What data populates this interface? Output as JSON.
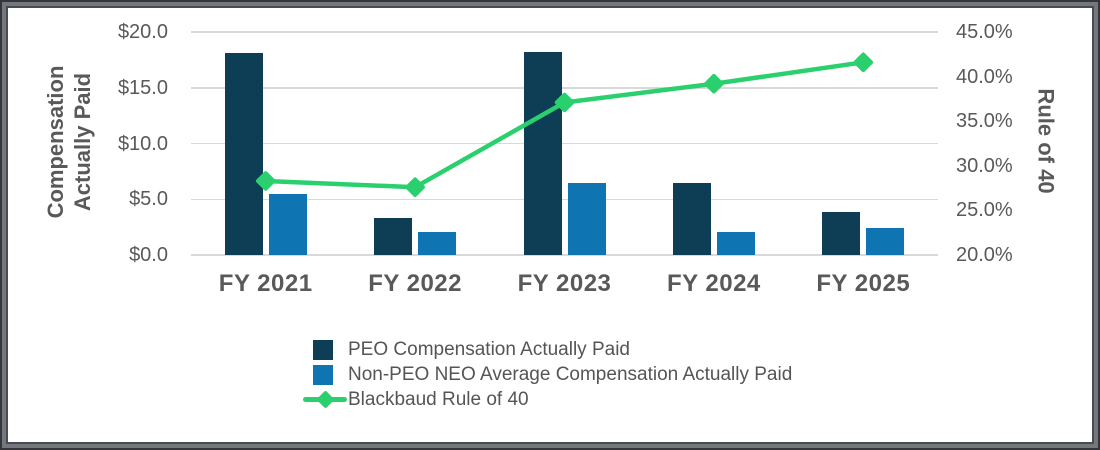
{
  "window": {
    "background": "#ffffff",
    "frame_color": "#54575d"
  },
  "chart_data": {
    "type": "combo",
    "grid": "horizontal",
    "legend_position": "bottom-left",
    "categories": [
      "FY 2021",
      "FY 2022",
      "FY 2023",
      "FY 2024",
      "FY 2025"
    ],
    "series": [
      {
        "name": "PEO Compensation Actually Paid",
        "type": "bar",
        "axis": "left",
        "color_key": "peo_bar",
        "values": [
          18.1,
          3.3,
          18.2,
          6.5,
          3.9
        ]
      },
      {
        "name": "Non-PEO NEO Average Compensation Actually Paid",
        "type": "bar",
        "axis": "left",
        "color_key": "non_peo_bar",
        "values": [
          5.5,
          2.1,
          6.5,
          2.1,
          2.4
        ]
      },
      {
        "name": "Blackbaud Rule of 40",
        "type": "line",
        "axis": "right",
        "color_key": "rule_line",
        "values": [
          28.3,
          27.6,
          37.1,
          39.2,
          41.6
        ]
      }
    ],
    "axes": {
      "left": {
        "title": "Compensation Actually Paid",
        "title_lines": [
          "Compensation",
          "Actually Paid"
        ],
        "min": 0,
        "max": 20,
        "tick_values": [
          20,
          15,
          10,
          5,
          0
        ],
        "tick_labels": [
          "$20.0",
          "$15.0",
          "$10.0",
          "$5.0",
          "$0.0"
        ]
      },
      "right": {
        "title": "Rule of 40",
        "min": 20,
        "max": 45,
        "tick_values": [
          45,
          40,
          35,
          30,
          25,
          20
        ],
        "tick_labels": [
          "45.0%",
          "40.0%",
          "35.0%",
          "30.0%",
          "25.0%",
          "20.0%"
        ]
      }
    },
    "colors": {
      "peo_bar": "#0D3E55",
      "non_peo_bar": "#0F74B2",
      "rule_line": "#2BD06E",
      "gridline": "#D9D9D9",
      "text": "#595959"
    }
  }
}
